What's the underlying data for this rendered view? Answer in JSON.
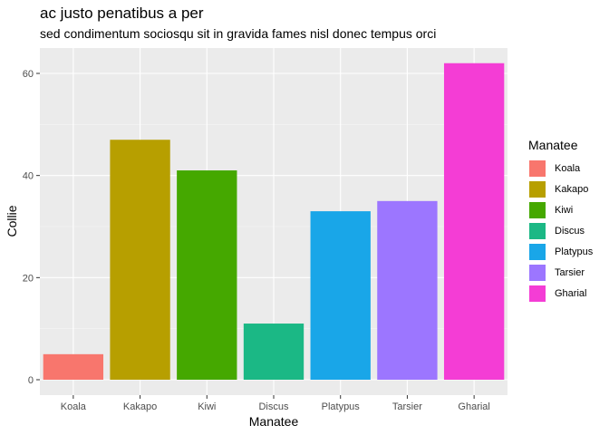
{
  "chart_data": {
    "type": "bar",
    "title": "ac justo penatibus a per",
    "subtitle": "sed condimentum sociosqu sit in gravida fames nisl donec tempus orci",
    "xlabel": "Manatee",
    "ylabel": "Collie",
    "categories": [
      "Koala",
      "Kakapo",
      "Kiwi",
      "Discus",
      "Platypus",
      "Tarsier",
      "Gharial"
    ],
    "values": [
      5,
      47,
      41,
      11,
      33,
      35,
      62
    ],
    "colors": [
      "#F8766D",
      "#B79F00",
      "#45A800",
      "#1BB885",
      "#19A6E8",
      "#9C76FF",
      "#F43DD5"
    ],
    "ylim": [
      0,
      65
    ],
    "yticks": [
      0,
      20,
      40,
      60
    ],
    "grid": true,
    "legend": {
      "title": "Manatee",
      "position": "right"
    }
  }
}
